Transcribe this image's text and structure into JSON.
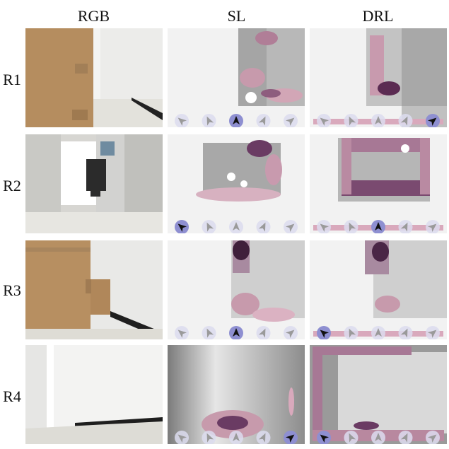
{
  "columns": [
    "RGB",
    "SL",
    "DRL"
  ],
  "rows": [
    "R1",
    "R2",
    "R3",
    "R4"
  ],
  "colors": {
    "accent": "#8e8fd1",
    "accent_light": "#dcdcee",
    "heat_dark": "#5b2b52",
    "heat_light": "#d9a9bc"
  },
  "selected_arrow": {
    "SL": [
      3,
      1,
      3,
      5
    ],
    "DRL": [
      5,
      3,
      1,
      1
    ]
  }
}
